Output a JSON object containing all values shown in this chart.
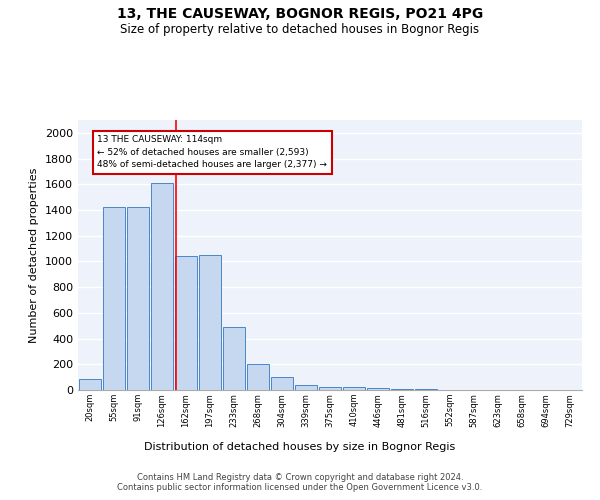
{
  "title1": "13, THE CAUSEWAY, BOGNOR REGIS, PO21 4PG",
  "title2": "Size of property relative to detached houses in Bognor Regis",
  "xlabel": "Distribution of detached houses by size in Bognor Regis",
  "ylabel": "Number of detached properties",
  "bin_labels": [
    "20sqm",
    "55sqm",
    "91sqm",
    "126sqm",
    "162sqm",
    "197sqm",
    "233sqm",
    "268sqm",
    "304sqm",
    "339sqm",
    "375sqm",
    "410sqm",
    "446sqm",
    "481sqm",
    "516sqm",
    "552sqm",
    "587sqm",
    "623sqm",
    "658sqm",
    "694sqm",
    "729sqm"
  ],
  "bar_heights": [
    85,
    1420,
    1425,
    1610,
    1045,
    1050,
    490,
    205,
    105,
    40,
    25,
    20,
    15,
    10,
    5,
    3,
    2,
    1,
    1,
    0,
    0
  ],
  "bar_color": "#c5d8f0",
  "bar_edge_color": "#4a86c8",
  "background_color": "#eef3fb",
  "grid_color": "#ffffff",
  "red_line_x": 3.57,
  "annotation_text": "13 THE CAUSEWAY: 114sqm\n← 52% of detached houses are smaller (2,593)\n48% of semi-detached houses are larger (2,377) →",
  "annotation_box_color": "#ffffff",
  "annotation_box_edge": "#cc0000",
  "footer_text": "Contains HM Land Registry data © Crown copyright and database right 2024.\nContains public sector information licensed under the Open Government Licence v3.0.",
  "ylim": [
    0,
    2100
  ],
  "yticks": [
    0,
    200,
    400,
    600,
    800,
    1000,
    1200,
    1400,
    1600,
    1800,
    2000
  ]
}
